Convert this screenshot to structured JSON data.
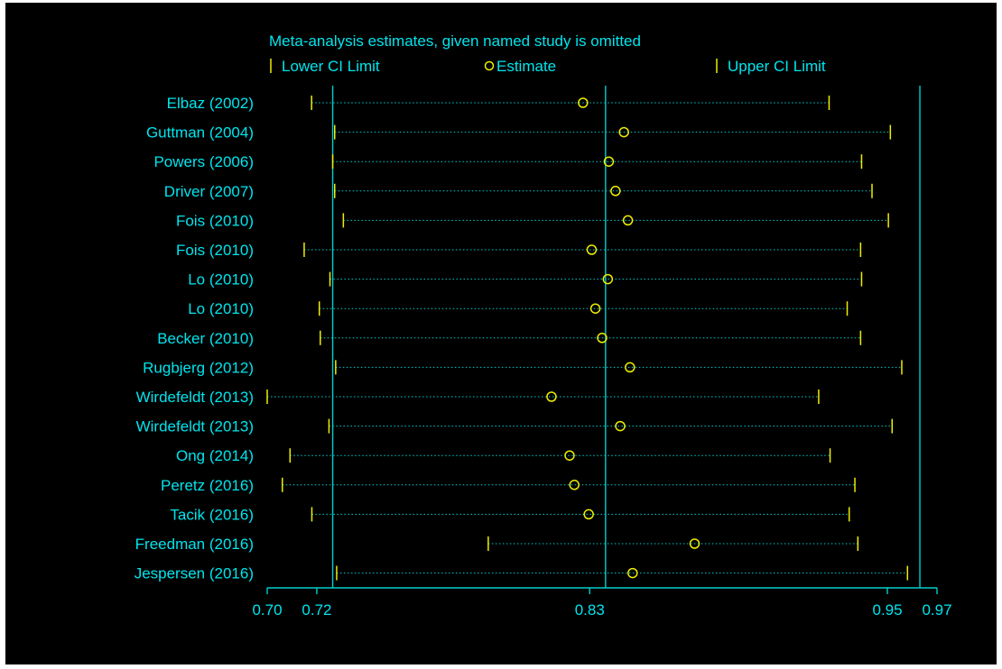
{
  "colors": {
    "background": "#000000",
    "frame": "#ffffff",
    "text": "#00e5ee",
    "reference_line": "#00cdcd",
    "ci_line": "#00cdcd",
    "limit_marker": "#eeee00",
    "estimate_marker": "#eeee00"
  },
  "chart_data": {
    "type": "scatter",
    "title": "Meta-analysis estimates, given named study is omitted",
    "legend": {
      "placement": "top",
      "entries": [
        {
          "label": "Lower CI Limit",
          "symbol": "|"
        },
        {
          "label": "Estimate",
          "symbol": "○"
        },
        {
          "label": "Upper CI Limit",
          "symbol": "|"
        }
      ]
    },
    "xlim": [
      0.7,
      0.97
    ],
    "x_ticks": [
      {
        "value": 0.7,
        "label": "0.70"
      },
      {
        "value": 0.72,
        "label": "0.72"
      },
      {
        "value": 0.83,
        "label": "0.83"
      },
      {
        "value": 0.95,
        "label": "0.95"
      },
      {
        "value": 0.97,
        "label": "0.97"
      }
    ],
    "reference_lines": [
      0.7264,
      0.8364,
      0.9631
    ],
    "grid": false,
    "studies": [
      {
        "name": "Elbaz (2002)",
        "lower": 0.7179,
        "estimate": 0.8273,
        "upper": 0.9265
      },
      {
        "name": "Guttman (2004)",
        "lower": 0.7272,
        "estimate": 0.8438,
        "upper": 0.9512
      },
      {
        "name": "Powers (2006)",
        "lower": 0.7264,
        "estimate": 0.8377,
        "upper": 0.9396
      },
      {
        "name": "Driver (2007)",
        "lower": 0.7272,
        "estimate": 0.8404,
        "upper": 0.9438
      },
      {
        "name": "Fois (2010)",
        "lower": 0.7307,
        "estimate": 0.8454,
        "upper": 0.9504
      },
      {
        "name": "Fois (2010)",
        "lower": 0.7149,
        "estimate": 0.8308,
        "upper": 0.9392
      },
      {
        "name": "Lo (2010)",
        "lower": 0.7253,
        "estimate": 0.8373,
        "upper": 0.9396
      },
      {
        "name": "Lo (2010)",
        "lower": 0.721,
        "estimate": 0.8323,
        "upper": 0.9338
      },
      {
        "name": "Becker (2010)",
        "lower": 0.7214,
        "estimate": 0.835,
        "upper": 0.9392
      },
      {
        "name": "Rugbjerg (2012)",
        "lower": 0.7276,
        "estimate": 0.8462,
        "upper": 0.9558
      },
      {
        "name": "Wirdefeldt (2013)",
        "lower": 0.7,
        "estimate": 0.8146,
        "upper": 0.9223
      },
      {
        "name": "Wirdefeldt (2013)",
        "lower": 0.7249,
        "estimate": 0.8423,
        "upper": 0.9519
      },
      {
        "name": "Ong (2014)",
        "lower": 0.7092,
        "estimate": 0.8219,
        "upper": 0.9269
      },
      {
        "name": "Peretz (2016)",
        "lower": 0.7061,
        "estimate": 0.8238,
        "upper": 0.9369
      },
      {
        "name": "Tacik (2016)",
        "lower": 0.718,
        "estimate": 0.8296,
        "upper": 0.9346
      },
      {
        "name": "Freedman (2016)",
        "lower": 0.7891,
        "estimate": 0.8723,
        "upper": 0.9381
      },
      {
        "name": "Jespersen (2016)",
        "lower": 0.728,
        "estimate": 0.8473,
        "upper": 0.9581
      }
    ]
  }
}
